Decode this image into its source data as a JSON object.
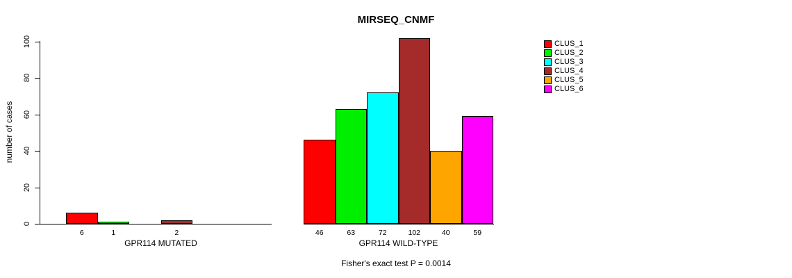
{
  "chart_data": {
    "type": "bar",
    "title": "MIRSEQ_CNMF",
    "ylabel": "number of cases",
    "ylim": [
      0,
      100
    ],
    "yticks": [
      0,
      20,
      40,
      60,
      80,
      100
    ],
    "grid": false,
    "legend_position": "right",
    "series": [
      {
        "name": "CLUS_1",
        "color": "#FF0000"
      },
      {
        "name": "CLUS_2",
        "color": "#00EE00"
      },
      {
        "name": "CLUS_3",
        "color": "#00FFFF"
      },
      {
        "name": "CLUS_4",
        "color": "#A52A2A"
      },
      {
        "name": "CLUS_5",
        "color": "#FFA500"
      },
      {
        "name": "CLUS_6",
        "color": "#FF00FF"
      }
    ],
    "groups": [
      {
        "label": "GPR114 MUTATED",
        "values": [
          6,
          1,
          0,
          2,
          0,
          0
        ],
        "bar_labels": [
          "6",
          "1",
          "",
          "2",
          "",
          ""
        ]
      },
      {
        "label": "GPR114 WILD-TYPE",
        "values": [
          46,
          63,
          72,
          102,
          40,
          59
        ],
        "bar_labels": [
          "46",
          "63",
          "72",
          "102",
          "40",
          "59"
        ]
      }
    ],
    "annotation": "Fisher's exact test P = 0.0014"
  }
}
